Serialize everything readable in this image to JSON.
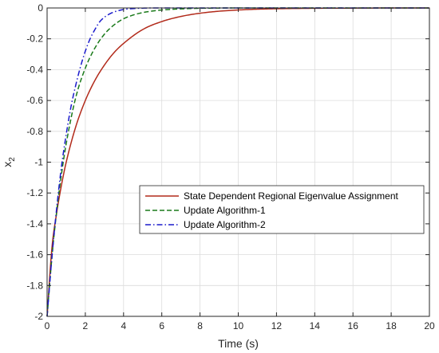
{
  "chart_data": {
    "type": "line",
    "title": "",
    "xlabel": "Time (s)",
    "ylabel_main": "x",
    "ylabel_sub": "2",
    "xlim": [
      0,
      20
    ],
    "ylim": [
      -2,
      0
    ],
    "xticks": [
      0,
      2,
      4,
      6,
      8,
      10,
      12,
      14,
      16,
      18,
      20
    ],
    "yticks": [
      -2,
      -1.8,
      -1.6,
      -1.4,
      -1.2,
      -1,
      -0.8,
      -0.6,
      -0.4,
      -0.2,
      0
    ],
    "xtick_labels": [
      "0",
      "2",
      "4",
      "6",
      "8",
      "10",
      "12",
      "14",
      "16",
      "18",
      "20"
    ],
    "ytick_labels": [
      "-2",
      "-1.8",
      "-1.6",
      "-1.4",
      "-1.2",
      "-1",
      "-0.8",
      "-0.6",
      "-0.4",
      "-0.2",
      "0"
    ],
    "grid": true,
    "legend_position": "center-right",
    "series": [
      {
        "name": "State Dependent Regional Eigenvalue Assignment",
        "color": "#b22a1a",
        "dash": "solid",
        "x": [
          0,
          0.25,
          0.5,
          0.75,
          1,
          1.5,
          2,
          2.5,
          3,
          3.5,
          4,
          5,
          6,
          7,
          8,
          9,
          10,
          11,
          12,
          14,
          16,
          18,
          20
        ],
        "y": [
          -2.0,
          -1.56,
          -1.33,
          -1.15,
          -1.0,
          -0.77,
          -0.6,
          -0.47,
          -0.37,
          -0.29,
          -0.23,
          -0.14,
          -0.088,
          -0.055,
          -0.034,
          -0.021,
          -0.013,
          -0.008,
          -0.005,
          -0.002,
          -0.001,
          0,
          0
        ]
      },
      {
        "name": "Update Algorithm-1",
        "color": "#1a7a1a",
        "dash": "dashed",
        "x": [
          0,
          0.25,
          0.5,
          0.75,
          1,
          1.5,
          2,
          2.5,
          3,
          3.5,
          4,
          4.5,
          5,
          5.5,
          6,
          7,
          8,
          10,
          20
        ],
        "y": [
          -2.0,
          -1.62,
          -1.32,
          -1.08,
          -0.88,
          -0.58,
          -0.39,
          -0.26,
          -0.17,
          -0.11,
          -0.07,
          -0.046,
          -0.03,
          -0.02,
          -0.013,
          -0.006,
          -0.002,
          0,
          0
        ]
      },
      {
        "name": "Update Algorithm-2",
        "color": "#1a1acc",
        "dash": "dashdot",
        "x": [
          0,
          0.25,
          0.5,
          0.75,
          1,
          1.25,
          1.5,
          1.75,
          2,
          2.25,
          2.5,
          2.75,
          3,
          3.25,
          3.5,
          4,
          4.5,
          5,
          6,
          20
        ],
        "y": [
          -2.0,
          -1.62,
          -1.3,
          -1.03,
          -0.82,
          -0.64,
          -0.5,
          -0.38,
          -0.28,
          -0.2,
          -0.14,
          -0.09,
          -0.06,
          -0.04,
          -0.026,
          -0.01,
          -0.004,
          -0.001,
          0,
          0
        ]
      }
    ]
  }
}
